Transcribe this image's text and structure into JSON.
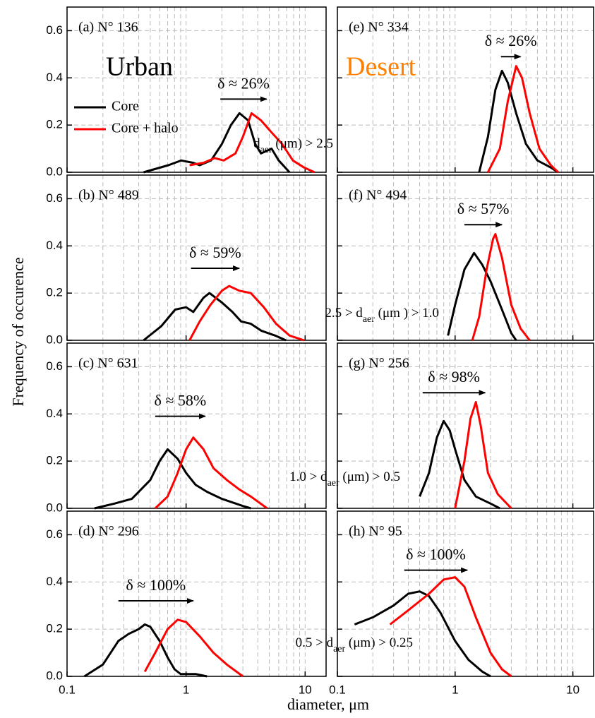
{
  "ylabel": "Frequency of occurence",
  "xlabel": "diameter, μm",
  "chart_data": [
    {
      "type": "line",
      "label": "(a) N° 136",
      "title": "Urban",
      "title_color": "#000000",
      "legend": "upper left",
      "delta": "δ ≈ 26%",
      "arrow_x": [
        1.94,
        4.75
      ],
      "arrow_y": 0.31,
      "range_label": [
        {
          "text": "d"
        },
        {
          "text": "aer",
          "sub": true
        },
        {
          "text": " (μm) > 2.5"
        }
      ],
      "xscale": "log",
      "xlim": [
        0.1,
        15
      ],
      "ylim": [
        0,
        0.7
      ],
      "xticks": [
        0.1,
        1,
        10
      ],
      "xtick_labels": false,
      "yticks": [
        {
          "value": 0,
          "label": "0.0"
        },
        0.2,
        0.4,
        0.6
      ],
      "ytick_labels": true,
      "grid": true,
      "series": [
        {
          "name": "Core",
          "color": "#000000",
          "x": [
            0.44,
            0.71,
            0.91,
            1.15,
            1.3,
            1.62,
            2.0,
            2.38,
            2.81,
            3.32,
            3.81,
            4.26,
            5.23,
            6.0,
            7.4
          ],
          "values": [
            0,
            0.03,
            0.05,
            0.04,
            0.03,
            0.05,
            0.12,
            0.2,
            0.25,
            0.22,
            0.12,
            0.08,
            0.1,
            0.05,
            0
          ]
        },
        {
          "name": "Core + halo",
          "color": "#ff0000",
          "x": [
            1.07,
            1.4,
            1.74,
            2.07,
            2.6,
            3.0,
            3.55,
            4.26,
            5.2,
            6.4,
            7.9,
            9.8,
            12
          ],
          "values": [
            0.03,
            0.04,
            0.06,
            0.05,
            0.08,
            0.15,
            0.25,
            0.22,
            0.17,
            0.12,
            0.05,
            0.02,
            0
          ]
        }
      ]
    },
    {
      "type": "line",
      "label": "(b) N° 489",
      "delta": "δ ≈ 59%",
      "arrow_x": [
        1.1,
        2.8
      ],
      "arrow_y": 0.305,
      "range_label": [
        {
          "text": "2.5 > d"
        },
        {
          "text": "aer",
          "sub": true
        },
        {
          "text": " (μm ) > 1.0"
        }
      ],
      "xscale": "log",
      "xlim": [
        0.1,
        15
      ],
      "ylim": [
        0,
        0.7
      ],
      "xticks": [
        0.1,
        1,
        10
      ],
      "xtick_labels": false,
      "yticks": [
        {
          "value": 0,
          "label": "0.0"
        },
        0.2,
        0.4,
        0.6
      ],
      "ytick_labels": true,
      "grid": true,
      "series": [
        {
          "color": "#000000",
          "x": [
            0.44,
            0.62,
            0.81,
            1.0,
            1.15,
            1.4,
            1.57,
            2.0,
            2.45,
            2.9,
            3.5,
            4.3,
            5.6,
            6.9
          ],
          "values": [
            0,
            0.06,
            0.13,
            0.14,
            0.12,
            0.18,
            0.2,
            0.16,
            0.12,
            0.08,
            0.07,
            0.04,
            0.02,
            0
          ]
        },
        {
          "color": "#ff0000",
          "x": [
            1.07,
            1.3,
            1.6,
            2.0,
            2.3,
            2.8,
            3.5,
            4.5,
            5.7,
            7.4,
            9.8
          ],
          "values": [
            0,
            0.08,
            0.15,
            0.21,
            0.23,
            0.21,
            0.2,
            0.14,
            0.07,
            0.02,
            0
          ]
        }
      ]
    },
    {
      "type": "line",
      "label": "(c) N° 631",
      "delta": "δ ≈ 58%",
      "arrow_x": [
        0.55,
        1.45
      ],
      "arrow_y": 0.39,
      "range_label": [
        {
          "text": "1.0 > d"
        },
        {
          "text": "aer",
          "sub": true
        },
        {
          "text": " (μm) > 0.5"
        }
      ],
      "xscale": "log",
      "xlim": [
        0.1,
        15
      ],
      "ylim": [
        0,
        0.7
      ],
      "xticks": [
        0.1,
        1,
        10
      ],
      "xtick_labels": false,
      "yticks": [
        {
          "value": 0,
          "label": "0.0"
        },
        0.2,
        0.4,
        0.6
      ],
      "ytick_labels": true,
      "grid": true,
      "series": [
        {
          "color": "#000000",
          "x": [
            0.17,
            0.25,
            0.35,
            0.5,
            0.6,
            0.7,
            0.85,
            1.0,
            1.2,
            1.5,
            2.0,
            3.0,
            3.5
          ],
          "values": [
            0,
            0.02,
            0.04,
            0.12,
            0.2,
            0.25,
            0.21,
            0.15,
            0.1,
            0.07,
            0.04,
            0.01,
            0
          ]
        },
        {
          "color": "#ff0000",
          "x": [
            0.55,
            0.7,
            0.85,
            1.0,
            1.15,
            1.4,
            1.7,
            2.2,
            2.8,
            3.5,
            4.8
          ],
          "values": [
            0,
            0.05,
            0.15,
            0.25,
            0.3,
            0.25,
            0.17,
            0.12,
            0.08,
            0.05,
            0
          ]
        }
      ]
    },
    {
      "type": "line",
      "label": "(d) N° 296",
      "delta": "δ ≈ 100%",
      "arrow_x": [
        0.27,
        1.15
      ],
      "arrow_y": 0.32,
      "range_label": [
        {
          "text": "0.5 > d"
        },
        {
          "text": "aer",
          "sub": true
        },
        {
          "text": " (μm) > 0.25"
        }
      ],
      "xscale": "log",
      "xlim": [
        0.1,
        15
      ],
      "ylim": [
        0,
        0.7
      ],
      "xticks": [
        0.1,
        1,
        10
      ],
      "xtick_labels": true,
      "yticks": [
        {
          "value": 0,
          "label": "0.0"
        },
        0.2,
        0.4,
        0.6
      ],
      "ytick_labels": true,
      "grid": true,
      "series": [
        {
          "color": "#000000",
          "x": [
            0.14,
            0.2,
            0.27,
            0.33,
            0.4,
            0.45,
            0.5,
            0.6,
            0.7,
            0.8,
            0.9,
            1.2,
            1.5
          ],
          "values": [
            0,
            0.05,
            0.15,
            0.18,
            0.2,
            0.22,
            0.21,
            0.15,
            0.08,
            0.03,
            0.01,
            0.01,
            0
          ]
        },
        {
          "color": "#ff0000",
          "x": [
            0.45,
            0.55,
            0.7,
            0.85,
            1.0,
            1.3,
            1.7,
            2.2,
            3.0
          ],
          "values": [
            0.02,
            0.1,
            0.2,
            0.24,
            0.23,
            0.17,
            0.1,
            0.05,
            0
          ]
        }
      ]
    },
    {
      "type": "line",
      "label": "(e) N° 334",
      "title": "Desert",
      "title_color": "#ff8000",
      "delta": "δ ≈ 26%",
      "arrow_x": [
        2.45,
        3.6
      ],
      "arrow_y": 0.49,
      "xscale": "log",
      "xlim": [
        0.1,
        15
      ],
      "ylim": [
        0,
        0.7
      ],
      "xticks": [
        0.1,
        1,
        10
      ],
      "xtick_labels": false,
      "yticks": [
        {
          "value": 0,
          "label": "0.0"
        },
        0.2,
        0.4,
        0.6
      ],
      "ytick_labels": false,
      "grid": true,
      "series": [
        {
          "color": "#000000",
          "x": [
            1.6,
            1.9,
            2.2,
            2.5,
            2.8,
            3.3,
            4.0,
            5.0,
            6.5,
            7.5
          ],
          "values": [
            0,
            0.15,
            0.35,
            0.43,
            0.38,
            0.25,
            0.12,
            0.05,
            0.02,
            0
          ]
        },
        {
          "color": "#ff0000",
          "x": [
            1.9,
            2.4,
            2.8,
            3.3,
            3.7,
            4.3,
            5.2,
            6.5,
            7.5
          ],
          "values": [
            0,
            0.1,
            0.3,
            0.45,
            0.4,
            0.25,
            0.1,
            0.03,
            0
          ]
        }
      ]
    },
    {
      "type": "line",
      "label": "(f) N° 494",
      "delta": "δ ≈ 57%",
      "arrow_x": [
        1.2,
        2.5
      ],
      "arrow_y": 0.49,
      "xscale": "log",
      "xlim": [
        0.1,
        15
      ],
      "ylim": [
        0,
        0.7
      ],
      "xticks": [
        0.1,
        1,
        10
      ],
      "xtick_labels": false,
      "yticks": [
        {
          "value": 0,
          "label": "0.0"
        },
        0.2,
        0.4,
        0.6
      ],
      "ytick_labels": false,
      "grid": true,
      "series": [
        {
          "color": "#000000",
          "x": [
            0.87,
            1.0,
            1.2,
            1.45,
            1.7,
            2.0,
            2.5,
            3.0,
            3.3
          ],
          "values": [
            0.02,
            0.15,
            0.3,
            0.37,
            0.32,
            0.25,
            0.13,
            0.03,
            0
          ]
        },
        {
          "color": "#ff0000",
          "x": [
            1.4,
            1.6,
            1.85,
            2.1,
            2.2,
            2.5,
            3.0,
            3.6,
            4.3
          ],
          "values": [
            0,
            0.1,
            0.3,
            0.43,
            0.45,
            0.35,
            0.15,
            0.05,
            0
          ]
        }
      ]
    },
    {
      "type": "line",
      "label": "(g) N° 256",
      "delta": "δ ≈ 98%",
      "arrow_x": [
        0.53,
        1.8
      ],
      "arrow_y": 0.49,
      "xscale": "log",
      "xlim": [
        0.1,
        15
      ],
      "ylim": [
        0,
        0.7
      ],
      "xticks": [
        0.1,
        1,
        10
      ],
      "xtick_labels": false,
      "yticks": [
        {
          "value": 0,
          "label": "0.0"
        },
        0.2,
        0.4,
        0.6
      ],
      "ytick_labels": false,
      "grid": true,
      "series": [
        {
          "color": "#000000",
          "x": [
            0.5,
            0.6,
            0.7,
            0.8,
            0.9,
            1.0,
            1.2,
            1.5,
            2.0,
            2.4
          ],
          "values": [
            0.05,
            0.15,
            0.3,
            0.37,
            0.33,
            0.25,
            0.12,
            0.05,
            0.02,
            0
          ]
        },
        {
          "color": "#ff0000",
          "x": [
            1.0,
            1.2,
            1.35,
            1.5,
            1.65,
            1.9,
            2.3,
            3.0
          ],
          "values": [
            0,
            0.2,
            0.38,
            0.45,
            0.35,
            0.15,
            0.06,
            0
          ]
        }
      ]
    },
    {
      "type": "line",
      "label": "(h) N° 95",
      "delta": "δ ≈ 100%",
      "arrow_x": [
        0.37,
        1.27
      ],
      "arrow_y": 0.45,
      "xscale": "log",
      "xlim": [
        0.1,
        15
      ],
      "ylim": [
        0,
        0.7
      ],
      "xticks": [
        0.1,
        1,
        10
      ],
      "xtick_labels": true,
      "yticks": [
        {
          "value": 0,
          "label": "0.0"
        },
        0.2,
        0.4,
        0.6
      ],
      "ytick_labels": false,
      "grid": true,
      "series": [
        {
          "color": "#000000",
          "x": [
            0.14,
            0.2,
            0.3,
            0.4,
            0.5,
            0.6,
            0.75,
            1.0,
            1.3,
            1.7,
            2.0
          ],
          "values": [
            0.22,
            0.25,
            0.3,
            0.35,
            0.36,
            0.34,
            0.27,
            0.15,
            0.07,
            0.02,
            0
          ]
        },
        {
          "color": "#ff0000",
          "x": [
            0.28,
            0.4,
            0.6,
            0.8,
            1.0,
            1.2,
            1.5,
            2.0,
            2.5,
            3.0
          ],
          "values": [
            0.22,
            0.28,
            0.35,
            0.41,
            0.42,
            0.38,
            0.25,
            0.1,
            0.03,
            0
          ]
        }
      ]
    }
  ]
}
